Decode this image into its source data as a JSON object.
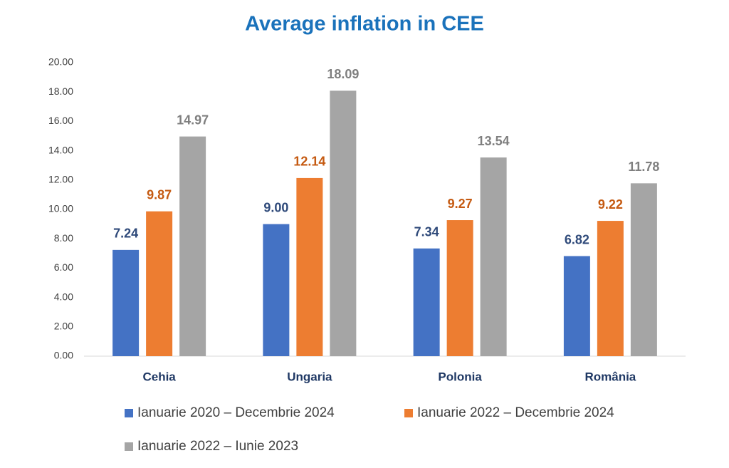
{
  "chart_data": {
    "type": "bar",
    "title": "Average inflation in CEE",
    "categories": [
      "Cehia",
      "Ungaria",
      "Polonia",
      "România"
    ],
    "series": [
      {
        "name": "Ianuarie 2020 – Decembrie 2024",
        "color": "#4472c4",
        "label_color": "#2f4a7a",
        "values": [
          7.24,
          9.0,
          7.34,
          6.82
        ],
        "value_labels": [
          "7.24",
          "9.00",
          "7.34",
          "6.82"
        ]
      },
      {
        "name": "Ianuarie 2022 – Decembrie 2024",
        "color": "#ed7d31",
        "label_color": "#c55a11",
        "values": [
          9.87,
          12.14,
          9.27,
          9.22
        ],
        "value_labels": [
          "9.87",
          "12.14",
          "9.27",
          "9.22"
        ]
      },
      {
        "name": "Ianuarie 2022 – Iunie 2023",
        "color": "#a5a5a5",
        "label_color": "#7f7f7f",
        "values": [
          14.97,
          18.09,
          13.54,
          11.78
        ],
        "value_labels": [
          "14.97",
          "18.09",
          "13.54",
          "11.78"
        ]
      }
    ],
    "ylim": [
      0,
      20
    ],
    "yticks": [
      {
        "value": 0,
        "label": "0.00"
      },
      {
        "value": 2,
        "label": "2.00"
      },
      {
        "value": 4,
        "label": "4.00"
      },
      {
        "value": 6,
        "label": "6.00"
      },
      {
        "value": 8,
        "label": "8.00"
      },
      {
        "value": 10,
        "label": "10.00"
      },
      {
        "value": 12,
        "label": "12.00"
      },
      {
        "value": 14,
        "label": "14.00"
      },
      {
        "value": 16,
        "label": "16.00"
      },
      {
        "value": 18,
        "label": "18.00"
      },
      {
        "value": 20,
        "label": "20.00"
      }
    ],
    "grid": false
  }
}
